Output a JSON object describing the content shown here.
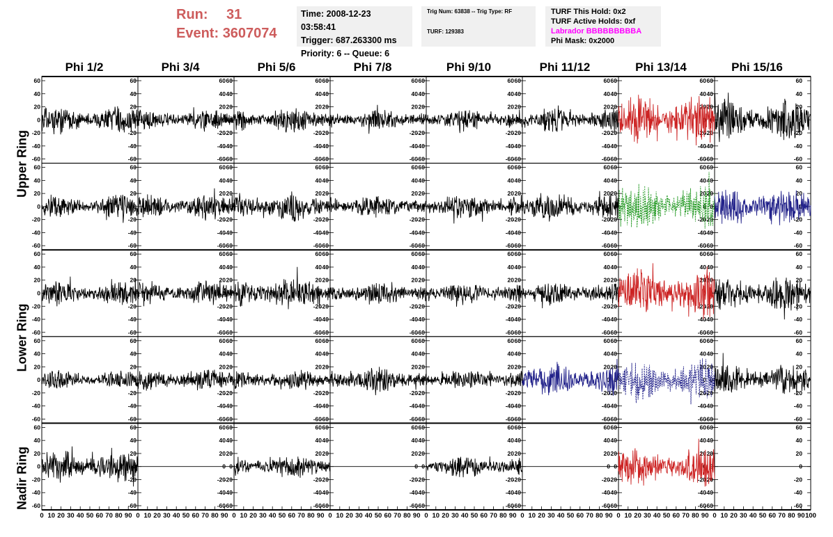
{
  "header": {
    "run_label": "Run:",
    "run_value": "31",
    "event_label": "Event:",
    "event_value": "3607074",
    "time": "Time: 2008-12-23 03:58:41",
    "trigger": "Trigger: 687.263300 ms",
    "priority": "Priority: 6 -- Queue: 6",
    "trig_num": "Trig Num: 63838 -- Trig Type: RF",
    "turf": "TURF: 129383",
    "turf_hold": "TURF This Hold: 0x2",
    "turf_active": "TURF Active Holds: 0xf",
    "labrador": "Labrador BBBBBBBBBA",
    "phi_mask": "Phi Mask: 0x2000"
  },
  "columns": [
    "Phi 1/2",
    "Phi 3/4",
    "Phi 5/6",
    "Phi 7/8",
    "Phi 9/10",
    "Phi 11/12",
    "Phi 13/14",
    "Phi 15/16"
  ],
  "rows": [
    "Upper Ring",
    "Lower Ring",
    "Nadir Ring"
  ],
  "colors": {
    "black": "#000000",
    "red": "#cc2222",
    "green": "#229922",
    "blue": "#22228a",
    "run": "#cd5c5c",
    "magenta": "#ff00ff"
  },
  "chart_data": {
    "type": "line",
    "ylim": [
      -60,
      60
    ],
    "xlim": [
      0,
      100
    ],
    "y_ticks": [
      -60,
      -40,
      -20,
      0,
      20,
      40,
      60
    ],
    "x_ticks": [
      0,
      10,
      20,
      30,
      40,
      50,
      60,
      70,
      80,
      90,
      100
    ],
    "panels": [
      {
        "row": 0,
        "col": 0,
        "amp": 18,
        "color": "black",
        "style": "solid"
      },
      {
        "row": 0,
        "col": 1,
        "amp": 14,
        "color": "black",
        "style": "solid"
      },
      {
        "row": 0,
        "col": 2,
        "amp": 16,
        "color": "black",
        "style": "solid"
      },
      {
        "row": 0,
        "col": 3,
        "amp": 14,
        "color": "black",
        "style": "solid"
      },
      {
        "row": 0,
        "col": 4,
        "amp": 14,
        "color": "black",
        "style": "solid"
      },
      {
        "row": 0,
        "col": 5,
        "amp": 16,
        "color": "black",
        "style": "solid"
      },
      {
        "row": 0,
        "col": 6,
        "amp": 32,
        "color": "red",
        "style": "solid"
      },
      {
        "row": 0,
        "col": 7,
        "amp": 26,
        "color": "black",
        "style": "solid"
      },
      {
        "row": 1,
        "col": 0,
        "amp": 16,
        "color": "black",
        "style": "solid"
      },
      {
        "row": 1,
        "col": 1,
        "amp": 16,
        "color": "black",
        "style": "solid"
      },
      {
        "row": 1,
        "col": 2,
        "amp": 18,
        "color": "black",
        "style": "solid"
      },
      {
        "row": 1,
        "col": 3,
        "amp": 16,
        "color": "black",
        "style": "solid"
      },
      {
        "row": 1,
        "col": 4,
        "amp": 16,
        "color": "black",
        "style": "solid"
      },
      {
        "row": 1,
        "col": 5,
        "amp": 18,
        "color": "black",
        "style": "solid"
      },
      {
        "row": 1,
        "col": 6,
        "amp": 30,
        "color": "green",
        "style": "dashed"
      },
      {
        "row": 1,
        "col": 7,
        "amp": 24,
        "color": "blue",
        "style": "solid"
      },
      {
        "row": 2,
        "col": 0,
        "amp": 16,
        "color": "black",
        "style": "solid"
      },
      {
        "row": 2,
        "col": 1,
        "amp": 16,
        "color": "black",
        "style": "solid"
      },
      {
        "row": 2,
        "col": 2,
        "amp": 20,
        "color": "black",
        "style": "solid"
      },
      {
        "row": 2,
        "col": 3,
        "amp": 16,
        "color": "black",
        "style": "solid"
      },
      {
        "row": 2,
        "col": 4,
        "amp": 14,
        "color": "black",
        "style": "solid"
      },
      {
        "row": 2,
        "col": 5,
        "amp": 14,
        "color": "black",
        "style": "solid"
      },
      {
        "row": 2,
        "col": 6,
        "amp": 32,
        "color": "red",
        "style": "solid"
      },
      {
        "row": 2,
        "col": 7,
        "amp": 22,
        "color": "black",
        "style": "solid"
      },
      {
        "row": 3,
        "col": 0,
        "amp": 12,
        "color": "black",
        "style": "solid"
      },
      {
        "row": 3,
        "col": 1,
        "amp": 14,
        "color": "black",
        "style": "solid"
      },
      {
        "row": 3,
        "col": 2,
        "amp": 14,
        "color": "black",
        "style": "solid"
      },
      {
        "row": 3,
        "col": 3,
        "amp": 16,
        "color": "black",
        "style": "solid"
      },
      {
        "row": 3,
        "col": 4,
        "amp": 14,
        "color": "black",
        "style": "solid"
      },
      {
        "row": 3,
        "col": 5,
        "amp": 22,
        "color": "blue",
        "style": "solid"
      },
      {
        "row": 3,
        "col": 6,
        "amp": 26,
        "color": "blue",
        "style": "dashed"
      },
      {
        "row": 3,
        "col": 7,
        "amp": 20,
        "color": "black",
        "style": "solid"
      },
      {
        "row": 4,
        "col": 0,
        "amp": 22,
        "color": "black",
        "style": "solid"
      },
      {
        "row": 4,
        "col": 1,
        "amp": 0,
        "color": "black",
        "style": "solid"
      },
      {
        "row": 4,
        "col": 2,
        "amp": 14,
        "color": "black",
        "style": "solid"
      },
      {
        "row": 4,
        "col": 3,
        "amp": 0,
        "color": "black",
        "style": "solid"
      },
      {
        "row": 4,
        "col": 4,
        "amp": 14,
        "color": "black",
        "style": "solid"
      },
      {
        "row": 4,
        "col": 5,
        "amp": 0,
        "color": "black",
        "style": "solid"
      },
      {
        "row": 4,
        "col": 6,
        "amp": 26,
        "color": "red",
        "style": "solid"
      },
      {
        "row": 4,
        "col": 7,
        "amp": 0,
        "color": "black",
        "style": "solid"
      }
    ]
  }
}
